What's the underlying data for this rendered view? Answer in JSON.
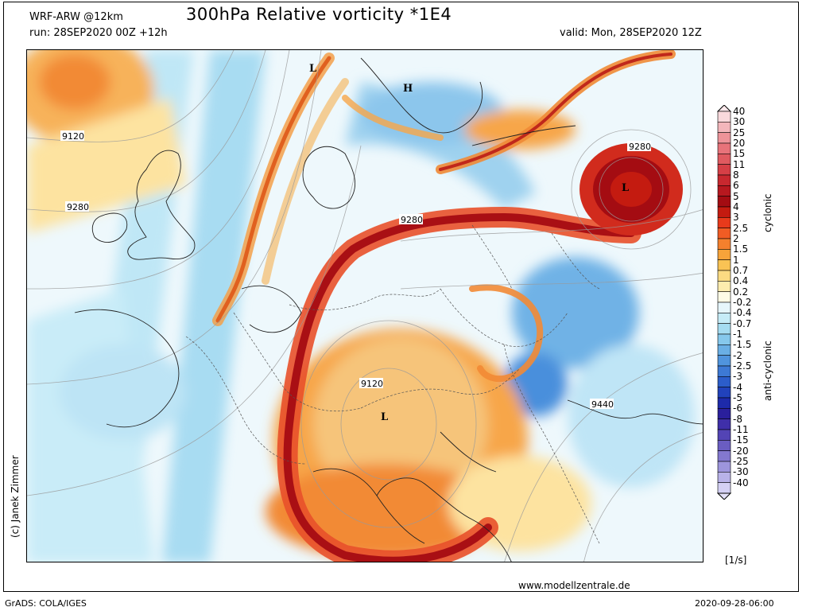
{
  "header": {
    "model": "WRF-ARW @12km",
    "title": "300hPa Relative vorticity *1E4",
    "run": "run: 28SEP2020 00Z +12h",
    "valid": "valid: Mon, 28SEP2020 12Z"
  },
  "footer": {
    "credit": "(c) Janek Zimmer",
    "website": "www.modellzentrale.de",
    "grads": "GrADS: COLA/IGES",
    "timestamp": "2020-09-28-06:00",
    "unit": "[1/s]"
  },
  "map": {
    "pressure_labels": [
      "9120",
      "9280",
      "9280",
      "9280",
      "9120",
      "9440"
    ],
    "centers": [
      {
        "label": "L",
        "kind": "low"
      },
      {
        "label": "H",
        "kind": "high"
      },
      {
        "label": "L",
        "kind": "low"
      },
      {
        "label": "L",
        "kind": "low"
      }
    ]
  },
  "colorbar": {
    "labels": [
      "40",
      "30",
      "25",
      "20",
      "15",
      "11",
      "8",
      "6",
      "5",
      "4",
      "3",
      "2.5",
      "2",
      "1.5",
      "1",
      "0.7",
      "0.4",
      "0.2",
      "-0.2",
      "-0.4",
      "-0.7",
      "-1",
      "-1.5",
      "-2",
      "-2.5",
      "-3",
      "-4",
      "-5",
      "-6",
      "-8",
      "-11",
      "-15",
      "-20",
      "-25",
      "-30",
      "-40"
    ],
    "colors": [
      "#f9d9dc",
      "#f3b6bb",
      "#ee9399",
      "#e8737a",
      "#e05a60",
      "#d63f46",
      "#c8282f",
      "#b7181f",
      "#a40c12",
      "#c41b10",
      "#e83a1b",
      "#f05c24",
      "#f4802d",
      "#f7a33a",
      "#f9c354",
      "#fbdb82",
      "#fdecae",
      "#fefbe6",
      "#e6f6fb",
      "#c6ecf7",
      "#a5dcf1",
      "#86c8ec",
      "#6aafe5",
      "#5094dd",
      "#3d79d4",
      "#2c5dca",
      "#2142bb",
      "#1d2aaa",
      "#2a1f9c",
      "#3f2fa9",
      "#5344b5",
      "#6a5dc2",
      "#8378cf",
      "#9d95dc",
      "#b8b2e8",
      "#d4d0f4"
    ],
    "cyclonic_label": "cyclonic",
    "anticyclonic_label": "anti-cyclonic"
  }
}
